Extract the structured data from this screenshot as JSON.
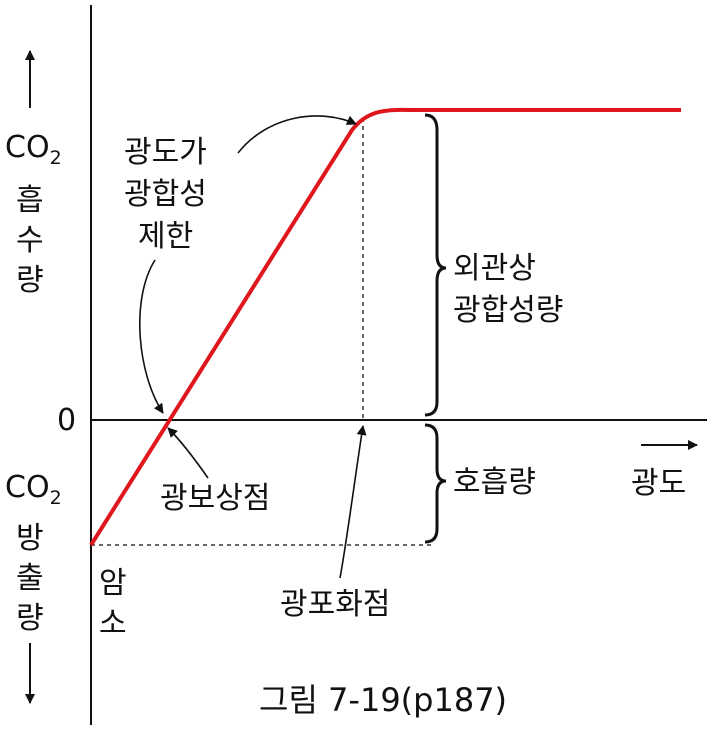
{
  "y_axis": {
    "up_label_main": "CO",
    "up_label_sub": "2",
    "up_label_chars": [
      "흡",
      "수",
      "량"
    ],
    "zero_label": "0",
    "down_label_main": "CO",
    "down_label_sub": "2",
    "down_label_chars": [
      "방",
      "출",
      "량"
    ]
  },
  "x_axis": {
    "label": "광도"
  },
  "annotations": {
    "limiting_lines": [
      "광도가",
      "광합성",
      "제한"
    ],
    "apparent_lines": [
      "외관상",
      "광합성량"
    ],
    "respiration": "호흡량",
    "compensation_point": "광보상점",
    "saturation_point": "광포화점",
    "dark_chars": [
      "암",
      "소"
    ]
  },
  "caption": "그림 7-19(p187)",
  "colors": {
    "curve": "#e0161d",
    "ink": "#111111"
  }
}
